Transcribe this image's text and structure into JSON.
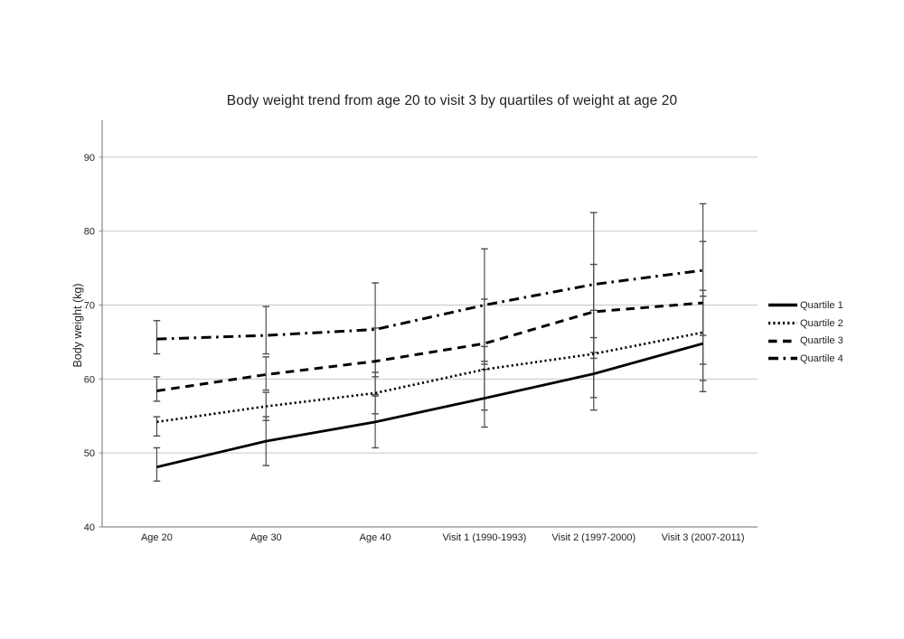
{
  "chart_data": {
    "type": "line",
    "title": "Body weight trend from age 20 to visit 3 by quartiles of weight at age 20",
    "ylabel": "Body weight (kg)",
    "xlabel": "",
    "categories": [
      "Age 20",
      "Age 30",
      "Age 40",
      "Visit 1 (1990-1993)",
      "Visit 2 (1997-2000)",
      "Visit 3 (2007-2011)"
    ],
    "y_ticks": [
      40,
      50,
      60,
      70,
      80,
      90
    ],
    "ylim": [
      40,
      95
    ],
    "grid": true,
    "legend_position": "right",
    "error_bars": true,
    "series": [
      {
        "name": "Quartile 1",
        "dash": "solid",
        "values": [
          48.1,
          51.6,
          54.2,
          57.4,
          60.7,
          64.8
        ],
        "err_lo": [
          46.2,
          48.3,
          50.7,
          53.5,
          55.8,
          58.3
        ],
        "err_hi": [
          50.7,
          54.9,
          57.7,
          61.3,
          65.6,
          71.2
        ]
      },
      {
        "name": "Quartile 2",
        "dash": "dotted",
        "values": [
          54.2,
          56.3,
          58.1,
          61.3,
          63.4,
          66.3
        ],
        "err_lo": [
          52.3,
          54.4,
          55.3,
          55.8,
          57.5,
          59.8
        ],
        "err_hi": [
          54.9,
          58.2,
          60.9,
          64.4,
          69.3,
          72.0
        ]
      },
      {
        "name": "Quartile 3",
        "dash": "dashed",
        "values": [
          58.4,
          60.6,
          62.4,
          64.8,
          69.1,
          70.3
        ],
        "err_lo": [
          57.0,
          58.5,
          57.9,
          62.0,
          62.8,
          62.0
        ],
        "err_hi": [
          60.3,
          63.0,
          66.9,
          70.8,
          75.5,
          78.6
        ]
      },
      {
        "name": "Quartile 4",
        "dash": "dashdot",
        "values": [
          65.4,
          65.9,
          66.7,
          70.0,
          72.8,
          74.7
        ],
        "err_lo": [
          63.4,
          63.4,
          60.3,
          62.4,
          63.6,
          65.9
        ],
        "err_hi": [
          67.9,
          69.8,
          73.0,
          77.6,
          82.5,
          83.7
        ]
      }
    ],
    "colors": {
      "series": "#000000",
      "gridline": "#c6c6c6",
      "axis": "#898989",
      "error_bar": "#4d4d4d",
      "text": "#1f1f1f",
      "background": "#ffffff"
    }
  }
}
